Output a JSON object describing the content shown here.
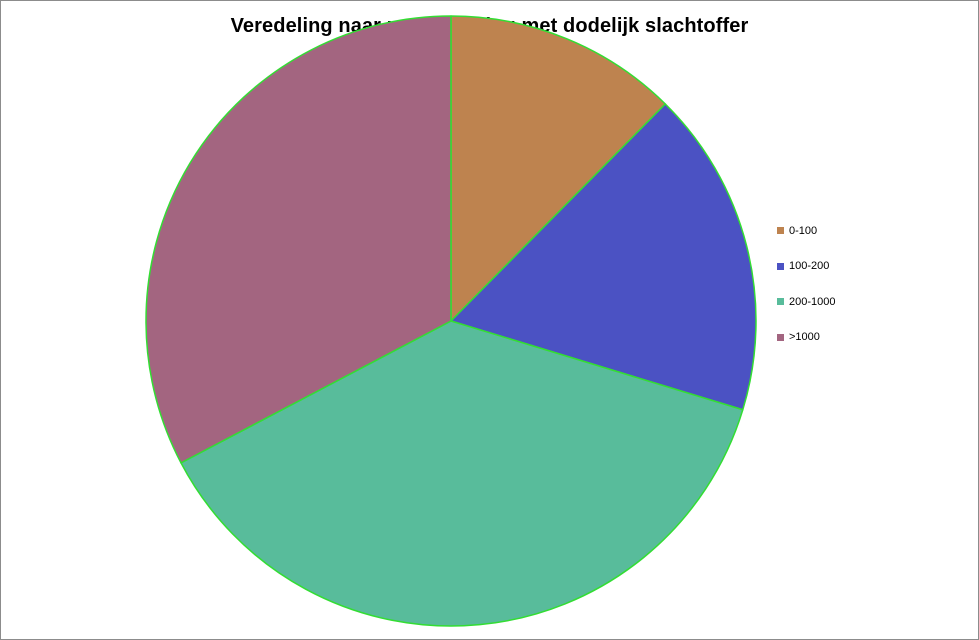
{
  "chart_data": {
    "type": "pie",
    "title": "Veredeling naar uren ervaring met dodelijk slachtoffer",
    "categories": [
      "0-100",
      "100-200",
      "200-1000",
      ">1000"
    ],
    "values": [
      12.4,
      17.3,
      37.6,
      32.7
    ],
    "unit": "%",
    "colors": [
      "#be834f",
      "#4b52c3",
      "#58bc9b",
      "#a36580"
    ],
    "slice_border_color": "#33dd33",
    "start_angle_deg": 0,
    "direction": "clockwise",
    "legend_position": "right"
  }
}
